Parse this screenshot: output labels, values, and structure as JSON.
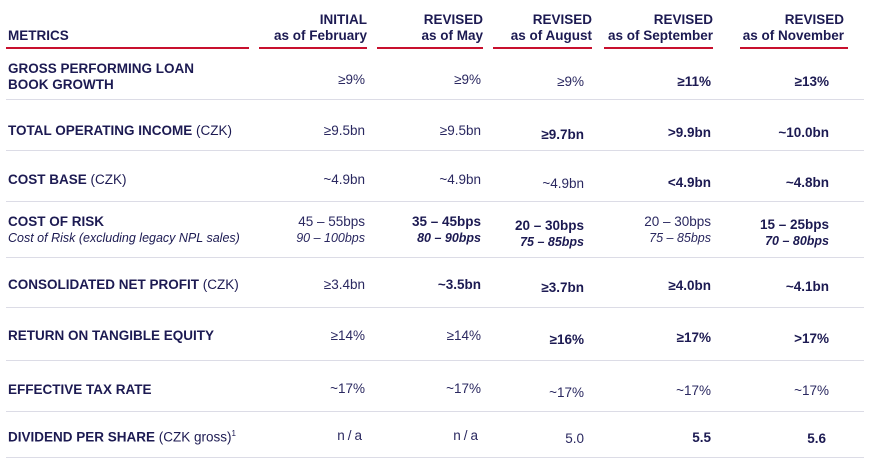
{
  "header": {
    "metrics_label": "METRICS",
    "columns": [
      {
        "line1": "INITIAL",
        "line2": "as of February"
      },
      {
        "line1": "REVISED",
        "line2": "as of May"
      },
      {
        "line1": "REVISED",
        "line2": "as of August"
      },
      {
        "line1": "REVISED",
        "line2": "as of September"
      },
      {
        "line1": "REVISED",
        "line2": "as of November"
      }
    ]
  },
  "rows": [
    {
      "label": "GROSS PERFORMING LOAN BOOK GROWTH",
      "unit": "",
      "values": [
        "≥9%",
        "≥9%",
        "≥9%",
        "≥11%",
        "≥13%"
      ]
    },
    {
      "label": "TOTAL OPERATING INCOME",
      "unit": " (CZK)",
      "values": [
        "≥9.5bn",
        "≥9.5bn",
        "≥9.7bn",
        ">9.9bn",
        "~10.0bn"
      ]
    },
    {
      "label": "COST BASE",
      "unit": " (CZK)",
      "values": [
        "~4.9bn",
        "~4.9bn",
        "~4.9bn",
        "<4.9bn",
        "~4.8bn"
      ]
    },
    {
      "label": "COST OF RISK",
      "unit": "",
      "sublabel": "Cost of Risk (excluding legacy NPL sales)",
      "values": [
        "45 – 55bps",
        "35 – 45bps",
        "20 – 30bps",
        "20 – 30bps",
        "15 – 25bps"
      ],
      "subvalues": [
        "90 – 100bps",
        "80 – 90bps",
        "75 – 85bps",
        "75 – 85bps",
        "70 – 80bps"
      ]
    },
    {
      "label": "CONSOLIDATED NET PROFIT",
      "unit": " (CZK)",
      "values": [
        "≥3.4bn",
        "~3.5bn",
        "≥3.7bn",
        "≥4.0bn",
        "~4.1bn"
      ]
    },
    {
      "label": "RETURN ON TANGIBLE EQUITY",
      "unit": "",
      "values": [
        "≥14%",
        "≥14%",
        "≥16%",
        "≥17%",
        ">17%"
      ]
    },
    {
      "label": "EFFECTIVE TAX RATE",
      "unit": "",
      "values": [
        "~17%",
        "~17%",
        "~17%",
        "~17%",
        "~17%"
      ]
    },
    {
      "label": "DIVIDEND PER SHARE",
      "unit": " (CZK gross)",
      "footnote": "1",
      "values": [
        "n/a",
        "n/a",
        "5.0",
        "5.5",
        "5.6"
      ]
    }
  ],
  "colors": {
    "navy": "#1c1a52",
    "red": "#c8102e",
    "rule": "#dcdce6"
  }
}
